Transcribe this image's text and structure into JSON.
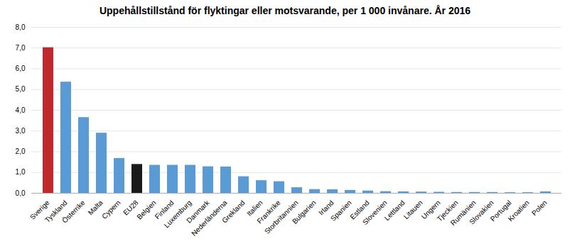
{
  "chart_data": {
    "type": "bar",
    "title": "Uppehållstillstånd för flyktingar eller motsvarande, per 1 000 invånare. År 2016",
    "categories": [
      "Sverige",
      "Tyskland",
      "Österrike",
      "Malta",
      "Cypern",
      "EU28",
      "Belgien",
      "Finland",
      "Luxemburg",
      "Danmark",
      "Nederländerna",
      "Grekland",
      "Italien",
      "Frankrike",
      "Storbritannien",
      "Bulgarien",
      "Irland",
      "Spanien",
      "Estland",
      "Slovenien",
      "Lettland",
      "Litauen",
      "Ungern",
      "Tjeckien",
      "Rumänien",
      "Slovakien",
      "Portugal",
      "Kroatien",
      "Polen"
    ],
    "values": [
      7.02,
      5.36,
      3.65,
      2.9,
      1.68,
      1.39,
      1.35,
      1.35,
      1.35,
      1.28,
      1.27,
      0.8,
      0.61,
      0.56,
      0.27,
      0.18,
      0.17,
      0.14,
      0.11,
      0.08,
      0.07,
      0.06,
      0.05,
      0.04,
      0.04,
      0.04,
      0.03,
      0.03,
      0.07
    ],
    "colors": [
      "#c0282e",
      "#5b9bd5",
      "#5b9bd5",
      "#5b9bd5",
      "#5b9bd5",
      "#1a1a1a",
      "#5b9bd5",
      "#5b9bd5",
      "#5b9bd5",
      "#5b9bd5",
      "#5b9bd5",
      "#5b9bd5",
      "#5b9bd5",
      "#5b9bd5",
      "#5b9bd5",
      "#5b9bd5",
      "#5b9bd5",
      "#5b9bd5",
      "#5b9bd5",
      "#5b9bd5",
      "#5b9bd5",
      "#5b9bd5",
      "#5b9bd5",
      "#5b9bd5",
      "#5b9bd5",
      "#5b9bd5",
      "#5b9bd5",
      "#5b9bd5",
      "#5b9bd5"
    ],
    "ylim": [
      0,
      8.0
    ],
    "yticks": [
      {
        "value": 0.0,
        "label": "0,0"
      },
      {
        "value": 1.0,
        "label": "1,0"
      },
      {
        "value": 2.0,
        "label": "2,0"
      },
      {
        "value": 3.0,
        "label": "3,0"
      },
      {
        "value": 4.0,
        "label": "4,0"
      },
      {
        "value": 5.0,
        "label": "5,0"
      },
      {
        "value": 6.0,
        "label": "6,0"
      },
      {
        "value": 7.0,
        "label": "7,0"
      },
      {
        "value": 8.0,
        "label": "8,0"
      }
    ],
    "grid": true
  }
}
